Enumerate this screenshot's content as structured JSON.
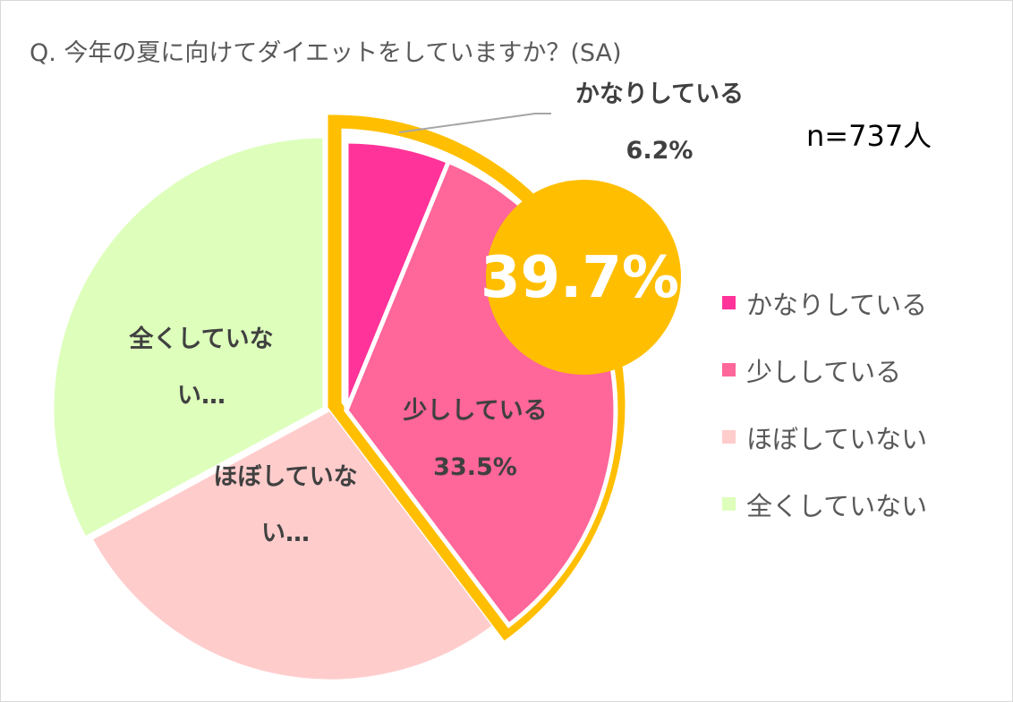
{
  "chart_data": {
    "type": "pie",
    "title": "Q. 今年の夏に向けてダイエットをしていますか？(SA)",
    "sample_size": "n=737人",
    "highlight_total": "39.7%",
    "slices": [
      {
        "name": "かなりしている",
        "value": 6.2,
        "value_label": "6.2%",
        "data_label": "かなりしている",
        "color": "#ff3399"
      },
      {
        "name": "少ししている",
        "value": 33.5,
        "value_label": "33.5%",
        "data_label": "少ししている",
        "color": "#ff6699"
      },
      {
        "name": "ほぼしていない",
        "value": 27.4,
        "value_label": "",
        "data_label_lines": [
          "ほぼしていな",
          "い…"
        ],
        "color": "#ffcccc"
      },
      {
        "name": "全くしていない",
        "value": 32.9,
        "value_label": "",
        "data_label_lines": [
          "全くしていな",
          "い…"
        ],
        "color": "#ddffbb"
      }
    ],
    "highlight_color": "#ffbf00",
    "legend_position": "right"
  }
}
